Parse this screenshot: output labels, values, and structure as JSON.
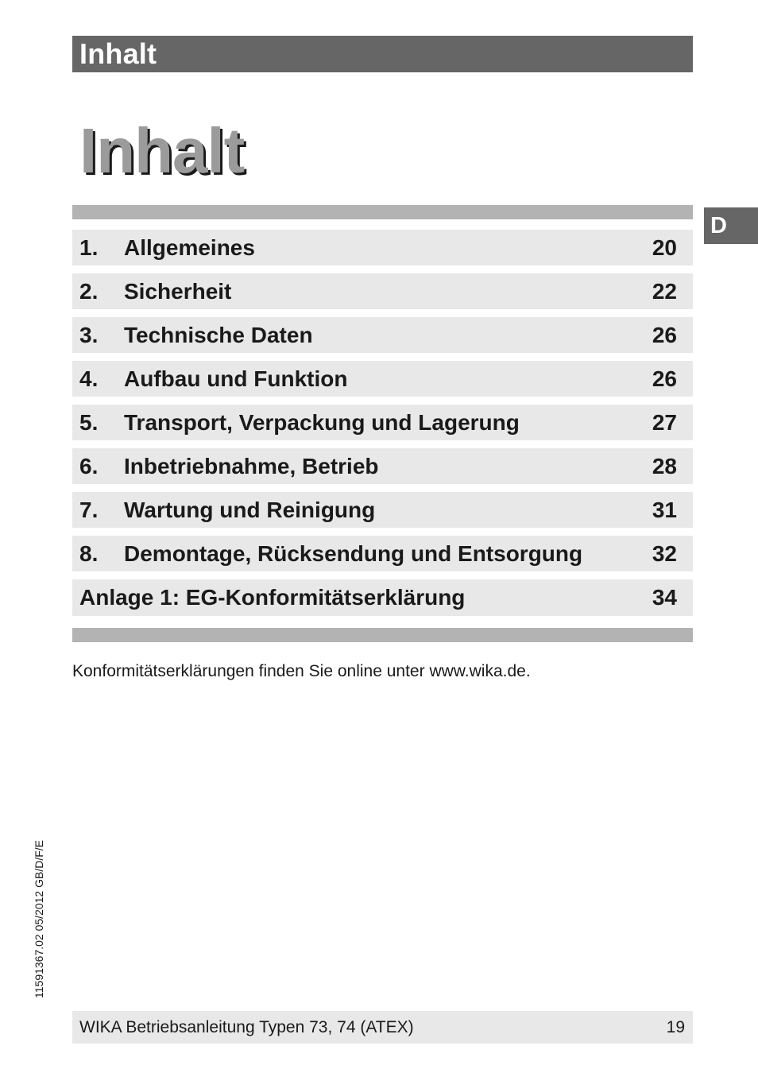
{
  "header": {
    "title": "Inhalt"
  },
  "page_title": "Inhalt",
  "language_tab": "D",
  "toc": {
    "entries": [
      {
        "number": "1.",
        "title": "Allgemeines",
        "page": "20"
      },
      {
        "number": "2.",
        "title": "Sicherheit",
        "page": "22"
      },
      {
        "number": "3.",
        "title": "Technische Daten",
        "page": "26"
      },
      {
        "number": "4.",
        "title": "Aufbau und Funktion",
        "page": "26"
      },
      {
        "number": "5.",
        "title": "Transport, Verpackung und Lagerung",
        "page": "27"
      },
      {
        "number": "6.",
        "title": "Inbetriebnahme, Betrieb",
        "page": "28"
      },
      {
        "number": "7.",
        "title": "Wartung und Reinigung",
        "page": "31"
      },
      {
        "number": "8.",
        "title": "Demontage, Rücksendung und Entsorgung",
        "page": "32"
      }
    ],
    "appendix": {
      "title": "Anlage 1: EG-Konformitätserklärung",
      "page": "34"
    }
  },
  "note": "Konformitätserklärungen finden Sie online unter www.wika.de.",
  "side_code": "11591367.02 05/2012 GB/D/F/E",
  "footer": {
    "text": "WIKA Betriebsanleitung Typen 73, 74 (ATEX)",
    "page_number": "19"
  },
  "colors": {
    "header_bar": "#666666",
    "rule": "#b3b3b3",
    "row_background": "#e8e8e8",
    "title_gray": "#9b9b9b"
  }
}
